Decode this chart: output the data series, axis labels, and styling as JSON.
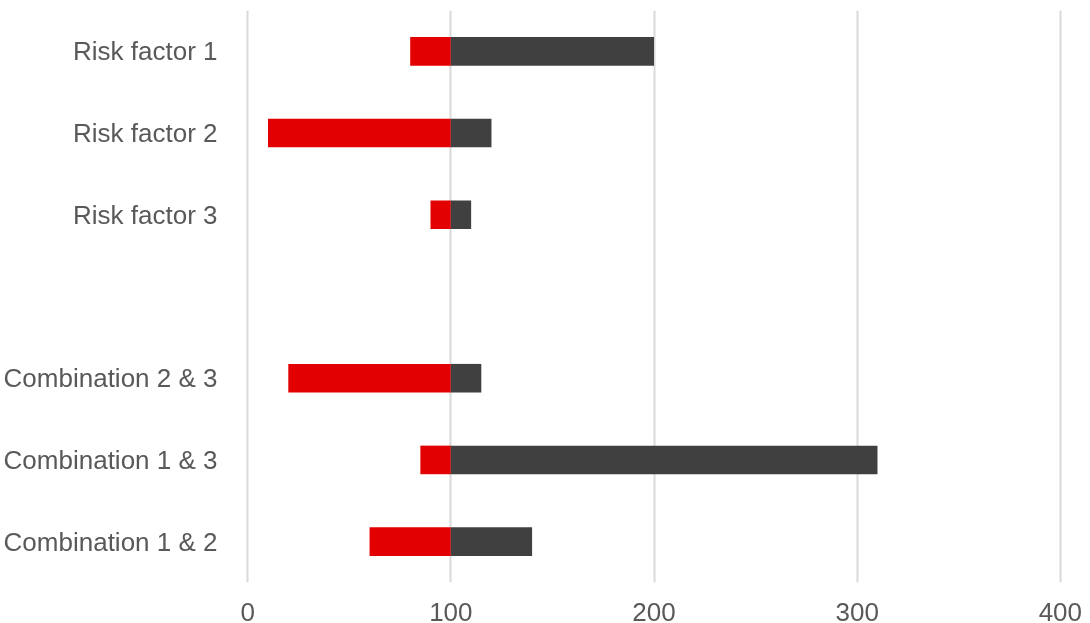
{
  "chart_data": {
    "type": "bar",
    "orientation": "horizontal",
    "categories": [
      "Risk factor 1",
      "Risk factor 2",
      "Risk factor 3",
      null,
      "Combination 2 & 3",
      "Combination 1 & 3",
      "Combination 1 & 2"
    ],
    "series": [
      {
        "color": "#e30000",
        "base": [
          80,
          10,
          90,
          null,
          20,
          85,
          60
        ],
        "values": [
          20,
          90,
          10,
          null,
          80,
          15,
          40
        ]
      },
      {
        "color": "#404040",
        "base": [
          100,
          100,
          100,
          null,
          100,
          100,
          100
        ],
        "values": [
          100,
          20,
          10,
          null,
          15,
          210,
          40
        ]
      }
    ],
    "xlim": [
      0,
      400
    ],
    "xticks": [
      0,
      100,
      200,
      300,
      400
    ],
    "grid": "x"
  }
}
